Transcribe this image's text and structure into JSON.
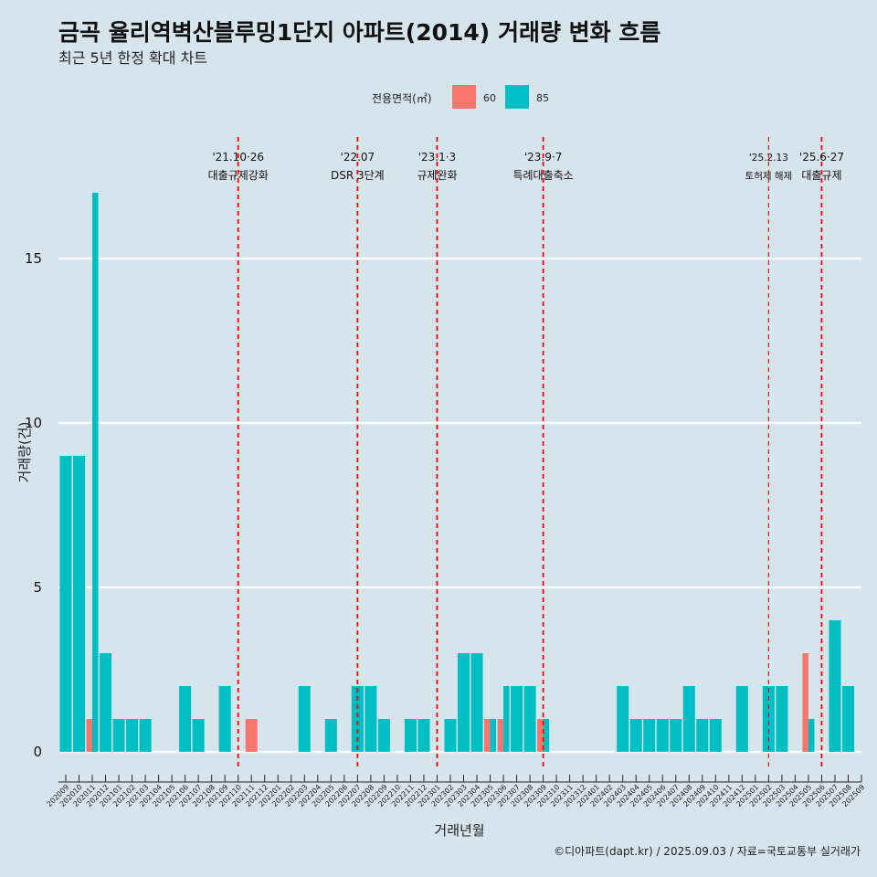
{
  "chart_data": {
    "type": "bar",
    "title": "금곡 율리역벽산블루밍1단지 아파트(2014) 거래량 변화 흐름",
    "subtitle": "최근 5년 한정 확대 차트",
    "xlabel": "거래년월",
    "ylabel": "거래량(건)",
    "caption": "©디아파트(dapt.kr) / 2025.09.03 / 자료=국토교통부 실거래가",
    "legend": {
      "title": "전용면적(㎡)",
      "position": "top"
    },
    "ylim": [
      0,
      17.5
    ],
    "yticks": [
      0,
      5,
      10,
      15
    ],
    "grid": true,
    "categories": [
      "202009",
      "202010",
      "202011",
      "202012",
      "202101",
      "202102",
      "202103",
      "202104",
      "202105",
      "202106",
      "202107",
      "202108",
      "202109",
      "202110",
      "202111",
      "202112",
      "202201",
      "202202",
      "202203",
      "202204",
      "202205",
      "202206",
      "202207",
      "202208",
      "202209",
      "202210",
      "202211",
      "202212",
      "202301",
      "202302",
      "202303",
      "202304",
      "202305",
      "202306",
      "202307",
      "202308",
      "202309",
      "202310",
      "202311",
      "202312",
      "202401",
      "202402",
      "202403",
      "202404",
      "202405",
      "202406",
      "202407",
      "202408",
      "202409",
      "202410",
      "202411",
      "202412",
      "202501",
      "202502",
      "202503",
      "202504",
      "202505",
      "202506",
      "202507",
      "202508",
      "202509"
    ],
    "series": [
      {
        "name": "60",
        "color": "#f8766d",
        "values": [
          0,
          0,
          1,
          0,
          0,
          0,
          0,
          0,
          0,
          0,
          0,
          0,
          0,
          0,
          1,
          0,
          0,
          0,
          0,
          0,
          0,
          0,
          0,
          0,
          0,
          0,
          0,
          0,
          0,
          0,
          0,
          0,
          1,
          1,
          0,
          0,
          1,
          0,
          0,
          0,
          0,
          0,
          0,
          0,
          0,
          0,
          0,
          0,
          0,
          0,
          0,
          0,
          0,
          0,
          0,
          0,
          3,
          0,
          0,
          0,
          0
        ]
      },
      {
        "name": "85",
        "color": "#00bfc4",
        "values": [
          9,
          9,
          17,
          3,
          1,
          1,
          1,
          0,
          0,
          2,
          1,
          0,
          2,
          0,
          0,
          0,
          0,
          0,
          2,
          0,
          1,
          0,
          2,
          2,
          1,
          0,
          1,
          1,
          0,
          1,
          3,
          3,
          1,
          2,
          2,
          2,
          1,
          0,
          0,
          0,
          0,
          0,
          2,
          1,
          1,
          1,
          1,
          2,
          1,
          1,
          0,
          2,
          0,
          2,
          2,
          0,
          1,
          0,
          4,
          2,
          0
        ]
      }
    ],
    "events": [
      {
        "at": "202110",
        "label1": "'21.10·26",
        "label2": "대출규제강화",
        "style": "thick"
      },
      {
        "at": "202207",
        "label1": "'22.07",
        "label2": "DSR 3단계",
        "style": "thick"
      },
      {
        "at": "202301",
        "label1": "'23.1·3",
        "label2": "규제완화",
        "style": "thick"
      },
      {
        "at": "202309",
        "label1": "'23.9·7",
        "label2": "특례대출축소",
        "style": "thick"
      },
      {
        "at": "202502",
        "label1": "'25.2.13",
        "label2": "토허제 해제",
        "style": "thin"
      },
      {
        "at": "202506",
        "label1": "'25.6·27",
        "label2": "대출규제",
        "style": "thick"
      }
    ]
  }
}
